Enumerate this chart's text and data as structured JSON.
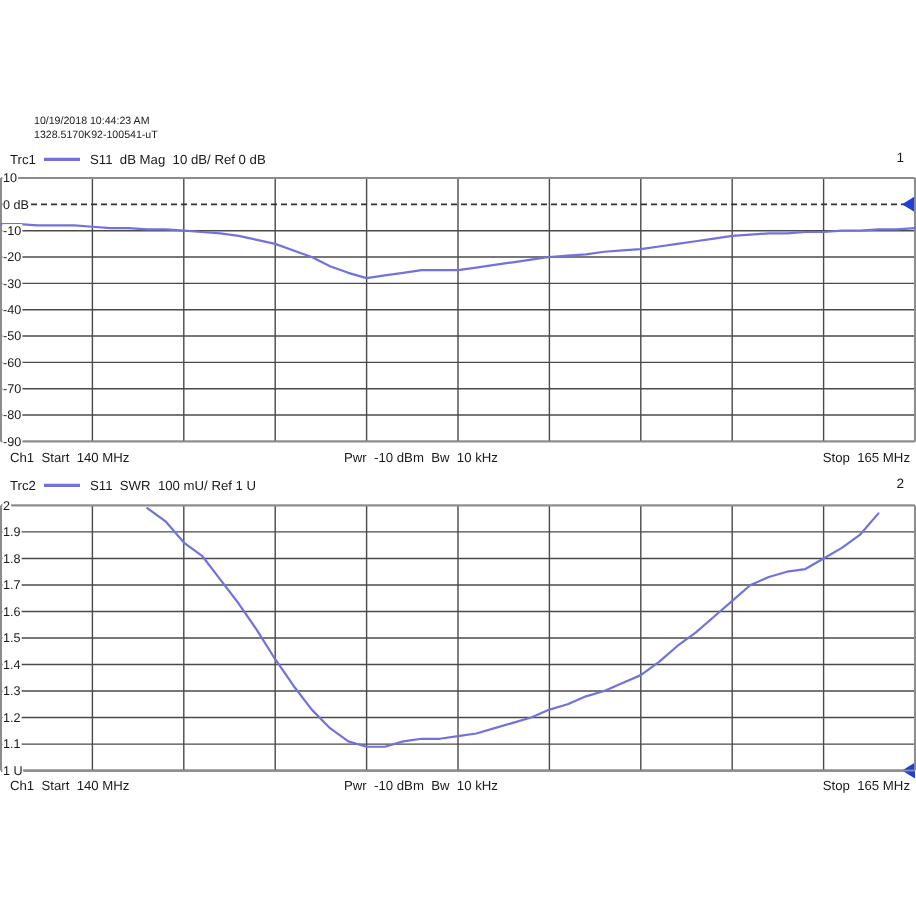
{
  "chart_data": [
    {
      "type": "line",
      "categories": [
        null,
        null,
        null,
        null,
        null,
        null,
        null,
        null,
        null,
        null,
        null,
        null,
        null,
        null,
        null,
        null,
        null,
        null,
        null,
        null,
        null,
        null,
        null,
        null,
        null,
        null,
        null,
        null,
        null,
        null,
        null,
        null,
        null,
        null,
        null,
        null,
        null,
        null,
        null,
        null,
        null,
        null,
        null,
        null,
        null,
        null,
        null,
        null,
        null,
        null,
        null
      ],
      "series": [
        {
          "name": "S11  dB Mag  10 dB/ Ref 0 dB",
          "color": "#7272dc",
          "values": [
            -7.5,
            -7.5,
            -8,
            -8,
            -8,
            -8.5,
            -9,
            -9,
            -9.5,
            -9.5,
            -10,
            -10.5,
            -11,
            -12,
            -13.5,
            -15,
            -17.5,
            -20,
            -23.5,
            -26,
            -28,
            -27,
            -26,
            -25,
            -25,
            -25,
            -24,
            -23,
            -22,
            -21,
            -20,
            -19.5,
            -19,
            -18,
            -17.5,
            -17,
            -16,
            -15,
            -14,
            -13,
            -12,
            -11.5,
            -11,
            -11,
            -10.5,
            -10.5,
            -10,
            -10,
            -9.5,
            -9.5,
            -9
          ]
        }
      ],
      "legend_title": "Trc1",
      "legend": "top left",
      "ylim": [
        -90,
        10
      ],
      "yticks": [
        10,
        {
          "value": 0,
          "label": "0 dB"
        },
        -10,
        -20,
        -30,
        -40,
        -50,
        -60,
        -70,
        -80,
        -90
      ],
      "tick_labels": "y",
      "grid": true,
      "ref_lines": [
        {
          "axis": "y",
          "value": 0,
          "line_style": "dashed"
        }
      ],
      "annotations": [
        "10/19/2018 10:44:23 AM",
        "1328.5170K92-100541-uT",
        "1",
        "Ch1  Start  140 MHz",
        "Pwr  -10 dBm  Bw  10 kHz",
        "Stop  165 MHz"
      ]
    },
    {
      "type": "line",
      "categories": [
        null,
        null,
        null,
        null,
        null,
        null,
        null,
        null,
        null,
        null,
        null,
        null,
        null,
        null,
        null,
        null,
        null,
        null,
        null,
        null,
        null,
        null,
        null,
        null,
        null,
        null,
        null,
        null,
        null,
        null,
        null,
        null,
        null,
        null,
        null,
        null,
        null,
        null,
        null,
        null,
        null,
        null,
        null,
        null,
        null,
        null,
        null,
        null,
        null,
        null,
        null
      ],
      "series": [
        {
          "name": "S11  SWR  100 mU/ Ref 1 U",
          "color": "#7272dc",
          "values": [
            null,
            null,
            null,
            null,
            null,
            null,
            null,
            null,
            1.99,
            1.94,
            1.86,
            1.81,
            1.72,
            1.63,
            1.53,
            1.42,
            1.32,
            1.23,
            1.16,
            1.11,
            1.09,
            1.09,
            1.11,
            1.12,
            1.12,
            1.13,
            1.14,
            1.16,
            1.18,
            1.2,
            1.23,
            1.25,
            1.28,
            1.3,
            1.33,
            1.36,
            1.41,
            1.47,
            1.52,
            1.58,
            1.64,
            1.7,
            1.73,
            1.75,
            1.76,
            1.8,
            1.84,
            1.89,
            1.97,
            null,
            null
          ]
        }
      ],
      "legend_title": "Trc2",
      "legend": "top left",
      "ylim": [
        1,
        2
      ],
      "yticks": [
        2,
        1.9,
        1.8,
        1.7,
        1.6,
        1.5,
        1.4,
        1.3,
        1.2,
        1.1,
        {
          "value": 1,
          "label": "1 U"
        }
      ],
      "tick_labels": "y",
      "grid": true,
      "ref_lines": [
        {
          "axis": "y",
          "value": 1
        }
      ],
      "annotations": [
        "2",
        "Ch1  Start  140 MHz",
        "Pwr  -10 dBm  Bw  10 kHz",
        "Stop  165 MHz"
      ]
    }
  ]
}
